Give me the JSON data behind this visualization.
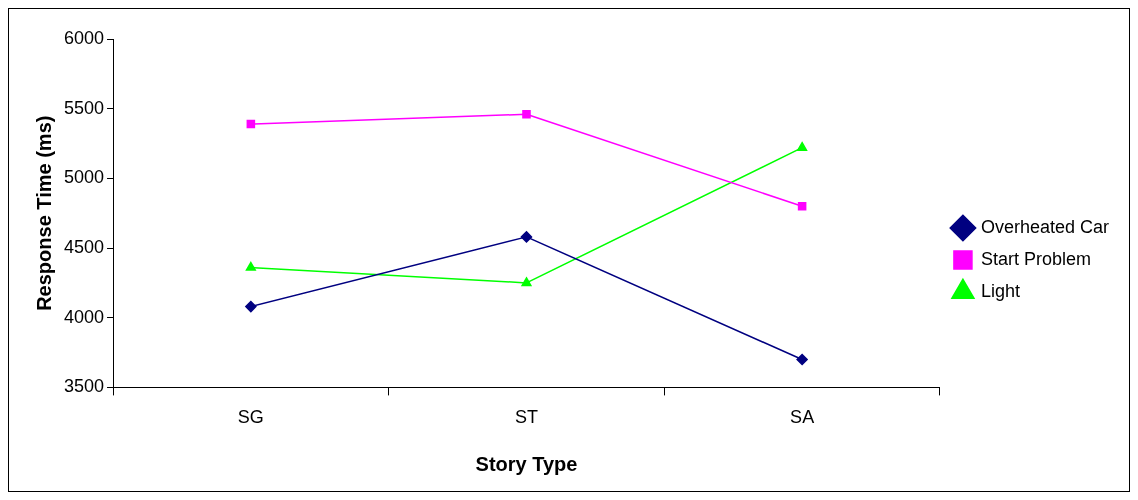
{
  "chart_data": {
    "type": "line",
    "xlabel": "Story Type",
    "ylabel": "Response Time (ms)",
    "categories": [
      "SG",
      "ST",
      "SA"
    ],
    "series": [
      {
        "name": "Overheated Car",
        "color": "#000080",
        "marker": "diamond",
        "values": [
          4080,
          4580,
          3700
        ]
      },
      {
        "name": "Start Problem",
        "color": "#ff00ff",
        "marker": "square",
        "values": [
          5390,
          5460,
          4800
        ]
      },
      {
        "name": "Light",
        "color": "#00ff00",
        "marker": "triangle",
        "values": [
          4360,
          4250,
          5220
        ]
      }
    ],
    "ylim": [
      3500,
      6000
    ],
    "yticks": [
      3500,
      4000,
      4500,
      5000,
      5500,
      6000
    ],
    "grid": false,
    "legend": "right"
  }
}
